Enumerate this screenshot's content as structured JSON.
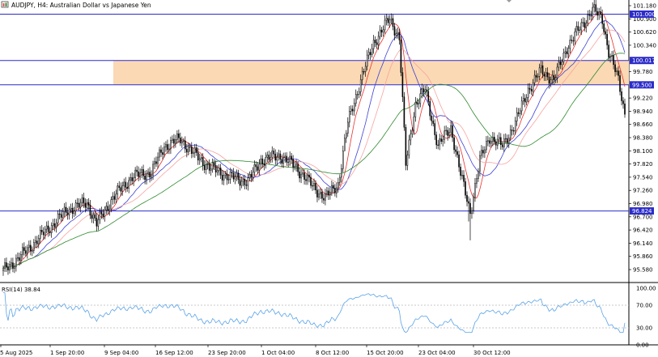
{
  "header": {
    "symbol": "AUDJPY",
    "timeframe": "H4",
    "description": "Australian Dollar vs Japanese Yen",
    "title_full": "AUDJPY, H4:  Australian Dollar vs Japanese Yen"
  },
  "icons": {
    "symbol_menu": "chart-symbol-menu-icon",
    "corner": "corner-icon"
  },
  "colors": {
    "candle": "#000000",
    "ma_fast": "#e8322e",
    "ma_mid": "#3c40d4",
    "ma_slow": "#f6a3a0",
    "ma_long": "#2f8a2f",
    "hline": "#2c2cc9",
    "zone": "#fbd9b4",
    "rsi_line": "#5aa3e8",
    "rsi_levels": "#b9b9b9",
    "tag_bg": "#2c2cc9"
  },
  "price_axis": {
    "labels": [
      "101.180",
      "100.900",
      "100.620",
      "100.340",
      "99.780",
      "99.220",
      "98.940",
      "98.660",
      "98.380",
      "98.100",
      "97.820",
      "97.540",
      "97.260",
      "96.980",
      "96.700",
      "96.420",
      "96.140",
      "95.860",
      "95.580"
    ]
  },
  "level_tags": [
    {
      "price": 101.0,
      "label": "101.000"
    },
    {
      "price": 100.017,
      "label": "100.017"
    },
    {
      "price": 99.5,
      "label": "99.500"
    },
    {
      "price": 96.824,
      "label": "96.824"
    }
  ],
  "zone": {
    "from": 99.5,
    "to": 100.017
  },
  "time_axis": {
    "labels": [
      "5 Aug 2025",
      "1 Sep 20:00",
      "9 Sep 04:00",
      "16 Sep 12:00",
      "23 Sep 20:00",
      "1 Oct 04:00",
      "8 Oct 12:00",
      "15 Oct 20:00",
      "23 Oct 04:00",
      "30 Oct 12:00"
    ]
  },
  "rsi": {
    "title": "RSI(14) 38.84",
    "axis_labels": [
      "100.00",
      "70.00",
      "30.00",
      "0.00"
    ],
    "levels": [
      70,
      30
    ]
  },
  "chart_data": {
    "type": "candlestick",
    "title": "AUDJPY, H4:  Australian Dollar vs Japanese Yen",
    "y_range": [
      95.35,
      101.35
    ],
    "rsi_range": [
      0,
      100
    ],
    "key_points": [
      [
        0,
        95.55
      ],
      [
        12,
        95.9
      ],
      [
        25,
        96.35
      ],
      [
        40,
        96.85
      ],
      [
        52,
        97.0
      ],
      [
        58,
        96.55
      ],
      [
        68,
        97.1
      ],
      [
        80,
        97.55
      ],
      [
        92,
        97.65
      ],
      [
        100,
        98.2
      ],
      [
        110,
        98.35
      ],
      [
        118,
        98.05
      ],
      [
        128,
        97.75
      ],
      [
        140,
        97.55
      ],
      [
        152,
        97.45
      ],
      [
        160,
        97.9
      ],
      [
        172,
        98.0
      ],
      [
        182,
        97.75
      ],
      [
        192,
        97.35
      ],
      [
        200,
        97.1
      ],
      [
        208,
        97.4
      ],
      [
        214,
        98.7
      ],
      [
        222,
        99.6
      ],
      [
        230,
        100.4
      ],
      [
        240,
        100.9
      ],
      [
        246,
        100.5
      ],
      [
        250,
        97.8
      ],
      [
        256,
        99.1
      ],
      [
        262,
        99.4
      ],
      [
        270,
        98.2
      ],
      [
        278,
        98.6
      ],
      [
        284,
        97.6
      ],
      [
        290,
        96.8
      ],
      [
        296,
        97.9
      ],
      [
        302,
        98.4
      ],
      [
        310,
        98.2
      ],
      [
        318,
        98.7
      ],
      [
        326,
        99.4
      ],
      [
        334,
        99.8
      ],
      [
        342,
        99.6
      ],
      [
        350,
        100.3
      ],
      [
        358,
        100.7
      ],
      [
        366,
        101.1
      ],
      [
        372,
        100.9
      ],
      [
        376,
        100.2
      ],
      [
        382,
        99.6
      ],
      [
        386,
        98.9
      ]
    ],
    "last_rsi": 38.84
  }
}
